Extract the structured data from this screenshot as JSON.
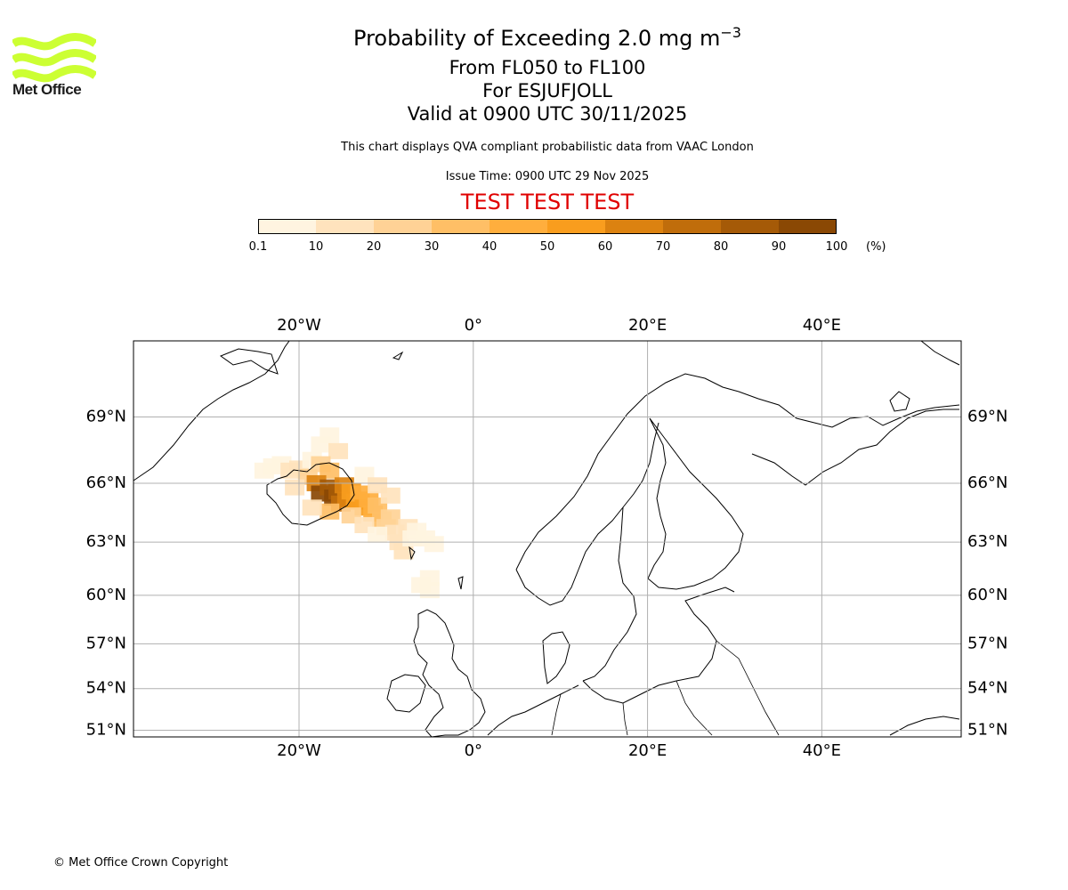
{
  "logo": {
    "text": "Met Office",
    "color": "#ccff33"
  },
  "header": {
    "title_main": "Probability of Exceeding 2.0 mg m",
    "title_sup": "−3",
    "level_range": "From FL050 to FL100",
    "volcano": "For ESJUFJOLL",
    "valid_time": "Valid at 0900 UTC 30/11/2025",
    "description": "This chart displays QVA compliant probabilistic data from VAAC London",
    "issue_time": "Issue Time: 0900 UTC 29 Nov 2025",
    "test_banner": "TEST TEST TEST"
  },
  "colorbar": {
    "labels": [
      "0.1",
      "10",
      "20",
      "30",
      "40",
      "50",
      "60",
      "70",
      "80",
      "90",
      "100"
    ],
    "unit": "(%)",
    "colors": [
      "#fff4e0",
      "#ffe3bd",
      "#ffd296",
      "#ffbf66",
      "#ffae3d",
      "#f99d1e",
      "#dc8210",
      "#c06d0b",
      "#a55a07",
      "#8a4804",
      "#5e3302"
    ]
  },
  "map": {
    "lon_range": [
      -39,
      56
    ],
    "lat_range": [
      50.5,
      72
    ],
    "lon_ticks": [
      "20°W",
      "0°",
      "20°E",
      "40°E"
    ],
    "lon_tick_values": [
      -20,
      0,
      20,
      40
    ],
    "lat_ticks": [
      "69°N",
      "66°N",
      "63°N",
      "60°N",
      "57°N",
      "54°N",
      "51°N"
    ],
    "lat_tick_values": [
      69,
      66,
      63,
      60,
      57,
      54,
      51
    ],
    "grid": true,
    "plume": [
      {
        "lon": -24.0,
        "lat": 66.6,
        "p": 5
      },
      {
        "lon": -23.0,
        "lat": 66.8,
        "p": 5
      },
      {
        "lon": -22.0,
        "lat": 66.9,
        "p": 8
      },
      {
        "lon": -21.0,
        "lat": 66.6,
        "p": 12
      },
      {
        "lon": -20.0,
        "lat": 66.7,
        "p": 15
      },
      {
        "lon": -19.0,
        "lat": 66.3,
        "p": 25
      },
      {
        "lon": -18.5,
        "lat": 67.1,
        "p": 8
      },
      {
        "lon": -17.5,
        "lat": 67.8,
        "p": 5
      },
      {
        "lon": -16.5,
        "lat": 68.2,
        "p": 5
      },
      {
        "lon": -15.5,
        "lat": 67.5,
        "p": 10
      },
      {
        "lon": -17.5,
        "lat": 66.9,
        "p": 20
      },
      {
        "lon": -16.5,
        "lat": 66.6,
        "p": 35
      },
      {
        "lon": -18.0,
        "lat": 66.0,
        "p": 60
      },
      {
        "lon": -17.5,
        "lat": 65.5,
        "p": 90
      },
      {
        "lon": -16.5,
        "lat": 65.8,
        "p": 85
      },
      {
        "lon": -16.0,
        "lat": 65.3,
        "p": 95
      },
      {
        "lon": -15.5,
        "lat": 65.6,
        "p": 80
      },
      {
        "lon": -14.8,
        "lat": 65.9,
        "p": 60
      },
      {
        "lon": -15.2,
        "lat": 65.0,
        "p": 75
      },
      {
        "lon": -14.5,
        "lat": 65.2,
        "p": 65
      },
      {
        "lon": -14.0,
        "lat": 65.6,
        "p": 55
      },
      {
        "lon": -13.5,
        "lat": 65.1,
        "p": 55
      },
      {
        "lon": -13.0,
        "lat": 65.5,
        "p": 45
      },
      {
        "lon": -12.5,
        "lat": 64.8,
        "p": 50
      },
      {
        "lon": -12.0,
        "lat": 65.2,
        "p": 40
      },
      {
        "lon": -11.5,
        "lat": 64.5,
        "p": 45
      },
      {
        "lon": -11.0,
        "lat": 64.9,
        "p": 30
      },
      {
        "lon": -10.5,
        "lat": 64.2,
        "p": 35
      },
      {
        "lon": -10.0,
        "lat": 63.8,
        "p": 25
      },
      {
        "lon": -9.5,
        "lat": 64.3,
        "p": 20
      },
      {
        "lon": -9.0,
        "lat": 63.5,
        "p": 18
      },
      {
        "lon": -8.5,
        "lat": 63.0,
        "p": 12
      },
      {
        "lon": -8.0,
        "lat": 62.5,
        "p": 10
      },
      {
        "lon": -7.5,
        "lat": 63.8,
        "p": 12
      },
      {
        "lon": -7.0,
        "lat": 63.2,
        "p": 8
      },
      {
        "lon": -6.5,
        "lat": 63.6,
        "p": 6
      },
      {
        "lon": -5.5,
        "lat": 63.2,
        "p": 5
      },
      {
        "lon": -4.5,
        "lat": 62.9,
        "p": 4
      },
      {
        "lon": -5.0,
        "lat": 61.0,
        "p": 5
      },
      {
        "lon": -6.0,
        "lat": 60.6,
        "p": 4
      },
      {
        "lon": -5.0,
        "lat": 60.3,
        "p": 3
      },
      {
        "lon": -12.5,
        "lat": 66.4,
        "p": 8
      },
      {
        "lon": -11.0,
        "lat": 65.9,
        "p": 10
      },
      {
        "lon": -9.5,
        "lat": 65.4,
        "p": 12
      },
      {
        "lon": -16.5,
        "lat": 64.6,
        "p": 30
      },
      {
        "lon": -14.0,
        "lat": 64.4,
        "p": 20
      },
      {
        "lon": -12.5,
        "lat": 63.9,
        "p": 12
      },
      {
        "lon": -11.0,
        "lat": 63.4,
        "p": 8
      },
      {
        "lon": -18.5,
        "lat": 64.8,
        "p": 15
      },
      {
        "lon": -20.5,
        "lat": 65.8,
        "p": 12
      }
    ]
  },
  "footer": {
    "copyright": "© Met Office Crown Copyright"
  }
}
